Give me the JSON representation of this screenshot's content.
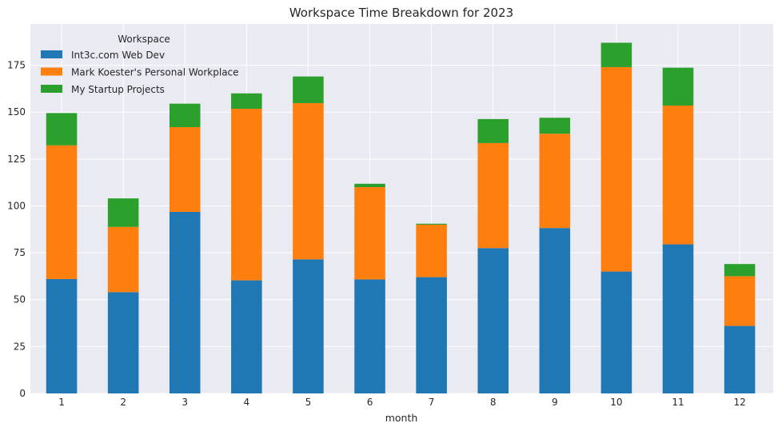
{
  "chart_data": {
    "type": "bar",
    "stacked": true,
    "title": "Workspace Time Breakdown for 2023",
    "xlabel": "month",
    "ylabel": "",
    "categories": [
      "1",
      "2",
      "3",
      "4",
      "5",
      "6",
      "7",
      "8",
      "9",
      "10",
      "11",
      "12"
    ],
    "y_ticks": [
      0,
      25,
      50,
      75,
      100,
      125,
      150,
      175
    ],
    "ylim": [
      0,
      197
    ],
    "grid": true,
    "legend": {
      "title": "Workspace",
      "placement": "top-left"
    },
    "series": [
      {
        "name": "Int3c.com Web Dev",
        "color": "#1f77b4",
        "values": [
          61,
          54,
          96.8,
          60.3,
          71.5,
          60.8,
          62,
          77.5,
          88.2,
          65,
          79.5,
          36
        ]
      },
      {
        "name": "Mark Koester's Personal Workplace",
        "color": "#ff7f0e",
        "values": [
          71.3,
          34.8,
          45.2,
          91.5,
          83.3,
          49.2,
          28,
          56,
          50.3,
          109,
          74,
          26.5
        ]
      },
      {
        "name": "My Startup Projects",
        "color": "#2ca02c",
        "values": [
          17.2,
          15.2,
          12.5,
          8.2,
          14.2,
          1.8,
          0.5,
          12.8,
          8.5,
          13,
          20.2,
          6.5
        ]
      }
    ]
  }
}
